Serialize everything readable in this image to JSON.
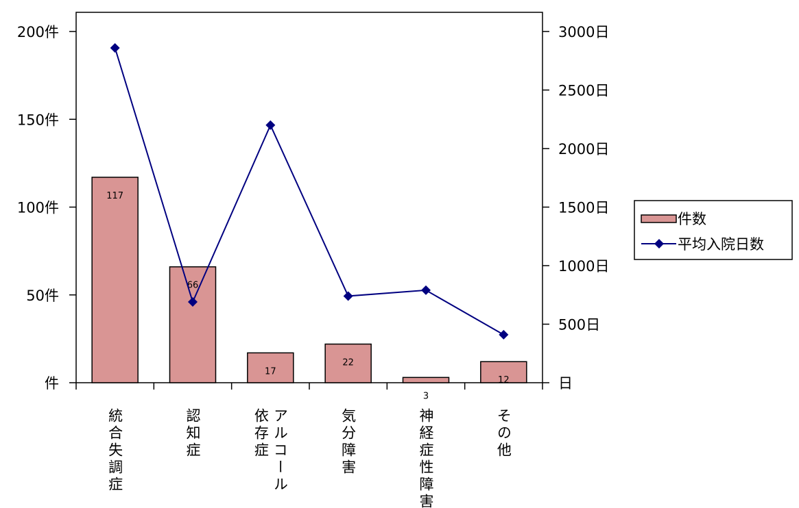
{
  "chart_data": {
    "type": "bar",
    "categories": [
      [
        "統合失調症"
      ],
      [
        "認知症"
      ],
      [
        "アルコール",
        "依存症"
      ],
      [
        "気分障害"
      ],
      [
        "神経症性障害"
      ],
      [
        "その他"
      ]
    ],
    "series": [
      {
        "name": "件数",
        "type": "bar",
        "axis": "left",
        "values": [
          117,
          66,
          17,
          22,
          3,
          12
        ],
        "data_labels": [
          "117",
          "66",
          "17",
          "22",
          "3",
          "12"
        ],
        "color": "#d99594",
        "border_color": "#000000"
      },
      {
        "name": "平均入院日数",
        "type": "line",
        "axis": "right",
        "values": [
          2860,
          690,
          2200,
          740,
          790,
          410
        ],
        "color": "#000080",
        "marker": "diamond"
      }
    ],
    "y_left": {
      "ylim": [
        0,
        200
      ],
      "ticks": [
        0,
        50,
        100,
        150,
        200
      ],
      "tick_labels": [
        "件",
        "50件",
        "100件",
        "150件",
        "200件"
      ]
    },
    "y_right": {
      "ylim": [
        0,
        3000
      ],
      "ticks": [
        0,
        500,
        1000,
        1500,
        2000,
        2500,
        3000
      ],
      "tick_labels": [
        "日",
        "500日",
        "1000日",
        "1500日",
        "2000日",
        "2500日",
        "3000日"
      ]
    },
    "grid": false,
    "legend_position": "right"
  }
}
